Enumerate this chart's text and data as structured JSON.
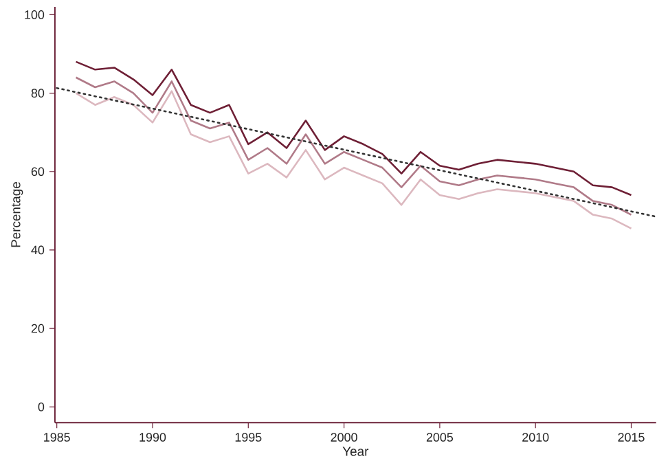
{
  "chart_data": {
    "type": "line",
    "xlabel": "Year",
    "ylabel": "Percentage",
    "x": [
      1986,
      1987,
      1988,
      1989,
      1990,
      1991,
      1992,
      1993,
      1994,
      1995,
      1996,
      1997,
      1998,
      1999,
      2000,
      2001,
      2002,
      2003,
      2004,
      2005,
      2006,
      2007,
      2008,
      2009,
      2010,
      2011,
      2012,
      2013,
      2014,
      2015
    ],
    "xlim": [
      1984.9,
      2016.3
    ],
    "xticks": [
      1985,
      1990,
      1995,
      2000,
      2005,
      2010,
      2015
    ],
    "ylim": [
      -4,
      102
    ],
    "yticks": [
      0,
      20,
      40,
      60,
      80,
      100
    ],
    "grid": false,
    "series": [
      {
        "color": "#6e1f35",
        "values": [
          88,
          86,
          86.5,
          83.5,
          79.5,
          86,
          77,
          75,
          77,
          67,
          70,
          66,
          73,
          65.5,
          69,
          67,
          64.5,
          59.5,
          65,
          61.5,
          60.5,
          62,
          63,
          62.5,
          62,
          61,
          60,
          56.5,
          56,
          54
        ]
      },
      {
        "color": "#b07a88",
        "values": [
          84,
          81.5,
          83,
          80,
          75,
          83,
          73,
          71,
          72.5,
          63,
          66,
          62,
          69.5,
          62,
          65,
          63,
          61,
          56,
          61.5,
          57.5,
          56.5,
          58,
          59,
          58.5,
          58,
          57,
          56,
          52.5,
          51.5,
          49
        ]
      },
      {
        "color": "#dcb8bf",
        "values": [
          80,
          77,
          79,
          77,
          72.5,
          80.5,
          69.5,
          67.5,
          69,
          59.5,
          62,
          58.5,
          65.5,
          58,
          61,
          59,
          57,
          51.5,
          58,
          54,
          53,
          54.5,
          55.5,
          55,
          54.5,
          53.5,
          52.5,
          49,
          48,
          45.5
        ]
      },
      {
        "color": "#333333",
        "line_style": "dotted",
        "x": [
          1985,
          2016.3
        ],
        "values": [
          81.3,
          48.5
        ]
      }
    ]
  }
}
